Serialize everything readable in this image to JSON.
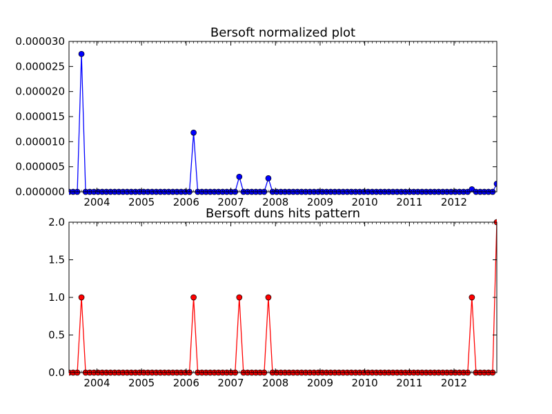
{
  "chart_data": [
    {
      "type": "line",
      "title": "Bersoft normalized plot",
      "xlabel": "",
      "ylabel": "",
      "x_tick_labels": [
        "2004",
        "2005",
        "2006",
        "2007",
        "2008",
        "2009",
        "2010",
        "2011",
        "2012"
      ],
      "y_tick_labels": [
        "0.000000",
        "0.000005",
        "0.000010",
        "0.000015",
        "0.000020",
        "0.000025",
        "0.000030"
      ],
      "y_ticks": [
        0,
        5e-06,
        1e-05,
        1.5e-05,
        2e-05,
        2.5e-05,
        3e-05
      ],
      "ylim": [
        0,
        3e-05
      ],
      "xlim": [
        "2003-05",
        "2012-12"
      ],
      "grid": false,
      "color": "#0000ff",
      "marker": "circle",
      "series": [
        {
          "values": [
            0,
            0,
            0,
            2.75e-05,
            0,
            0,
            0,
            0,
            0,
            0,
            0,
            0,
            0,
            0,
            0,
            0,
            0,
            0,
            0,
            0,
            0,
            0,
            0,
            0,
            0,
            0,
            0,
            0,
            0,
            0,
            1.18e-05,
            0,
            0,
            0,
            0,
            0,
            0,
            0,
            0,
            0,
            0,
            3e-06,
            0,
            0,
            0,
            0,
            0,
            0,
            2.7e-06,
            0,
            0,
            0,
            0,
            0,
            0,
            0,
            0,
            0,
            0,
            0,
            0,
            0,
            0,
            0,
            0,
            0,
            0,
            0,
            0,
            0,
            0,
            0,
            0,
            0,
            0,
            0,
            0,
            0,
            0,
            0,
            0,
            0,
            0,
            0,
            0,
            0,
            0,
            0,
            0,
            0,
            0,
            0,
            0,
            0,
            0,
            0,
            0,
            5e-07,
            0,
            0,
            0,
            0,
            0,
            1.6e-06
          ]
        }
      ]
    },
    {
      "type": "line",
      "title": "Bersoft duns hits pattern",
      "xlabel": "",
      "ylabel": "",
      "x_tick_labels": [
        "2004",
        "2005",
        "2006",
        "2007",
        "2008",
        "2009",
        "2010",
        "2011",
        "2012"
      ],
      "y_tick_labels": [
        "0.0",
        "0.5",
        "1.0",
        "1.5",
        "2.0"
      ],
      "y_ticks": [
        0,
        0.5,
        1,
        1.5,
        2
      ],
      "ylim": [
        0,
        2
      ],
      "xlim": [
        "2003-05",
        "2012-12"
      ],
      "grid": false,
      "color": "#ff0000",
      "marker": "circle",
      "series": [
        {
          "values": [
            0,
            0,
            0,
            1,
            0,
            0,
            0,
            0,
            0,
            0,
            0,
            0,
            0,
            0,
            0,
            0,
            0,
            0,
            0,
            0,
            0,
            0,
            0,
            0,
            0,
            0,
            0,
            0,
            0,
            0,
            1,
            0,
            0,
            0,
            0,
            0,
            0,
            0,
            0,
            0,
            0,
            1,
            0,
            0,
            0,
            0,
            0,
            0,
            1,
            0,
            0,
            0,
            0,
            0,
            0,
            0,
            0,
            0,
            0,
            0,
            0,
            0,
            0,
            0,
            0,
            0,
            0,
            0,
            0,
            0,
            0,
            0,
            0,
            0,
            0,
            0,
            0,
            0,
            0,
            0,
            0,
            0,
            0,
            0,
            0,
            0,
            0,
            0,
            0,
            0,
            0,
            0,
            0,
            0,
            0,
            0,
            0,
            1,
            0,
            0,
            0,
            0,
            0,
            2
          ]
        }
      ]
    }
  ]
}
